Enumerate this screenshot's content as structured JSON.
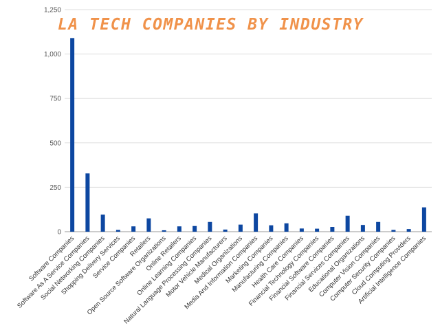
{
  "chart_data": {
    "type": "bar",
    "title": "LA TECH COMPANIES BY INDUSTRY",
    "xlabel": "",
    "ylabel": "",
    "ylim": [
      0,
      1250
    ],
    "yticks": [
      0,
      250,
      500,
      750,
      1000,
      1250
    ],
    "ytick_labels": [
      "0",
      "250",
      "500",
      "750",
      "1,000",
      "1,250"
    ],
    "grid": true,
    "categories": [
      "Software Companies",
      "Software As A Service Companies",
      "Social Networking Companies",
      "Shopping Delivery Services",
      "Service Companies",
      "Retailers",
      "Open Source Software Organizations",
      "Online Retailers",
      "Online Learning Companies",
      "Natural Language Processing Companies",
      "Motor Vehicle Manufacturers",
      "Medical Organizations",
      "Media And Information Companies",
      "Marketing Companies",
      "Manufacturing Companies",
      "Health Care Companies",
      "Financial Technology Companies",
      "Financial Software Companies",
      "Financial Services Companies",
      "Educational Organizations",
      "Computer Vision Companies",
      "Computer Security Companies",
      "Cloud Computing Providers",
      "Artificial Intelligence Companies"
    ],
    "values": [
      1090,
      328,
      96,
      10,
      30,
      75,
      8,
      30,
      32,
      55,
      12,
      40,
      103,
      36,
      47,
      18,
      17,
      27,
      90,
      38,
      55,
      10,
      15,
      137
    ]
  },
  "colors": {
    "bar": "#0d47a1",
    "title": "#f0924a",
    "grid": "#dddddd"
  }
}
